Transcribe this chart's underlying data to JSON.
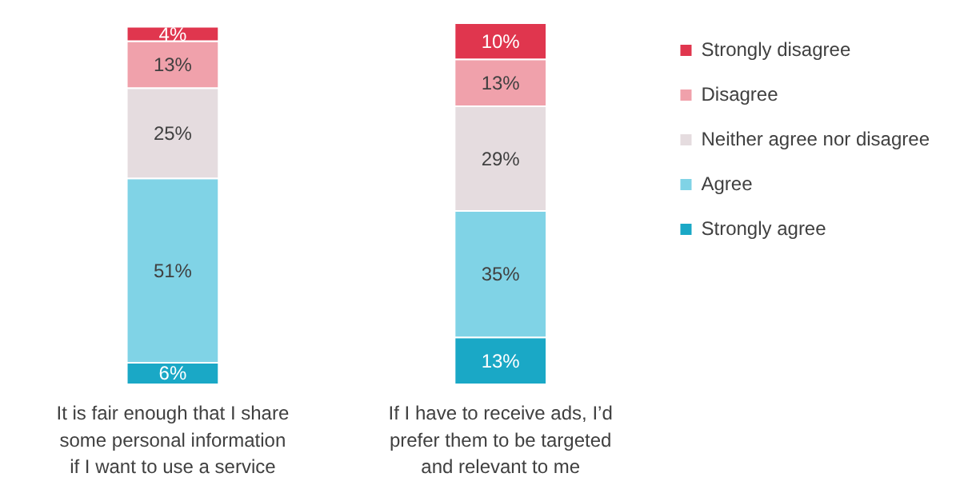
{
  "chart_data": {
    "type": "bar",
    "stacked": true,
    "legend": "right",
    "categories": [
      "It is fair enough that I share\nsome personal information\nif I want to use a service",
      "If I have to receive ads, I’d\nprefer them to be targeted\nand relevant to me"
    ],
    "series": [
      {
        "name": "Strongly agree",
        "color": "#1aa8c6",
        "values": [
          6,
          13
        ],
        "value_labels": [
          "6%",
          "13%"
        ]
      },
      {
        "name": "Agree",
        "color": "#80d3e6",
        "values": [
          51,
          35
        ],
        "value_labels": [
          "51%",
          "35%"
        ]
      },
      {
        "name": "Neither agree nor disagree",
        "color": "#e5dcdf",
        "values": [
          25,
          29
        ],
        "value_labels": [
          "25%",
          "29%"
        ]
      },
      {
        "name": "Disagree",
        "color": "#f0a1ab",
        "values": [
          13,
          13
        ],
        "value_labels": [
          "13%",
          "13%"
        ]
      },
      {
        "name": "Strongly disagree",
        "color": "#e0364e",
        "values": [
          4,
          10
        ],
        "value_labels": [
          "4%",
          "10%"
        ]
      }
    ]
  }
}
